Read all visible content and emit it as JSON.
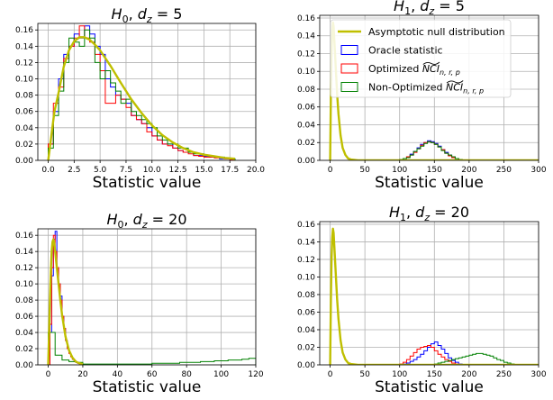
{
  "colors": {
    "null": "#bfbf00",
    "oracle": "#0000ff",
    "optimized": "#ff0000",
    "nonopt": "#008000",
    "grid": "#b0b0b0"
  },
  "chart_data": [
    {
      "type": "histogram",
      "title": {
        "hyp": "H",
        "sub": "0",
        "rest": ", ",
        "dz": "d",
        "dzsub": "z",
        "eq": " = 5"
      },
      "xlabel": "Statistic value",
      "xlim": [
        -1,
        20
      ],
      "ylim": [
        0,
        0.168
      ],
      "xticks": [
        "0.0",
        "2.5",
        "5.0",
        "7.5",
        "10.0",
        "12.5",
        "15.0",
        "17.5",
        "20.0"
      ],
      "xtick_values": [
        0,
        2.5,
        5,
        7.5,
        10,
        12.5,
        15,
        17.5,
        20
      ],
      "yticks": [
        "0.00",
        "0.02",
        "0.04",
        "0.06",
        "0.08",
        "0.10",
        "0.12",
        "0.14",
        "0.16"
      ],
      "ytick_values": [
        0,
        0.02,
        0.04,
        0.06,
        0.08,
        0.1,
        0.12,
        0.14,
        0.16
      ],
      "grid": true,
      "null_curve": {
        "x": [
          0,
          0.3,
          0.6,
          1,
          1.5,
          2,
          2.5,
          3,
          3.5,
          4,
          4.5,
          5,
          6,
          7,
          8,
          9,
          10,
          11,
          12,
          13,
          14,
          15,
          16,
          17,
          18
        ],
        "y": [
          0,
          0.03,
          0.06,
          0.083,
          0.115,
          0.135,
          0.146,
          0.151,
          0.151,
          0.148,
          0.142,
          0.135,
          0.116,
          0.095,
          0.075,
          0.058,
          0.043,
          0.031,
          0.022,
          0.015,
          0.01,
          0.007,
          0.005,
          0.003,
          0.002
        ]
      },
      "series": [
        {
          "name": "Oracle statistic",
          "key": "oracle",
          "x_start": 0,
          "bin_width": 0.5,
          "values": [
            0.02,
            0.06,
            0.1,
            0.13,
            0.14,
            0.155,
            0.15,
            0.165,
            0.155,
            0.14,
            0.13,
            0.1,
            0.09,
            0.08,
            0.075,
            0.07,
            0.055,
            0.05,
            0.045,
            0.04,
            0.03,
            0.025,
            0.02,
            0.02,
            0.015,
            0.012,
            0.01,
            0.01,
            0.006,
            0.006,
            0.005,
            0.004,
            0.004,
            0.002,
            0.002,
            0.001
          ]
        },
        {
          "name": "Optimized",
          "key": "optimized",
          "x_start": 0,
          "bin_width": 0.5,
          "values": [
            0.02,
            0.07,
            0.09,
            0.125,
            0.14,
            0.15,
            0.165,
            0.15,
            0.145,
            0.13,
            0.11,
            0.07,
            0.07,
            0.08,
            0.075,
            0.065,
            0.055,
            0.05,
            0.045,
            0.035,
            0.03,
            0.025,
            0.02,
            0.018,
            0.015,
            0.012,
            0.01,
            0.008,
            0.006,
            0.005,
            0.004,
            0.004,
            0.003,
            0.003,
            0.002,
            0.001
          ]
        },
        {
          "name": "Non-Optimized",
          "key": "nonopt",
          "x_start": 0,
          "bin_width": 0.5,
          "values": [
            0.015,
            0.055,
            0.085,
            0.12,
            0.15,
            0.145,
            0.14,
            0.16,
            0.15,
            0.12,
            0.1,
            0.11,
            0.095,
            0.085,
            0.07,
            0.075,
            0.06,
            0.055,
            0.05,
            0.045,
            0.04,
            0.03,
            0.025,
            0.02,
            0.02,
            0.015,
            0.015,
            0.01,
            0.008,
            0.008,
            0.006,
            0.005,
            0.004,
            0.004,
            0.003,
            0.002
          ]
        }
      ]
    },
    {
      "type": "histogram",
      "title": {
        "hyp": "H",
        "sub": "1",
        "rest": ", ",
        "dz": "d",
        "dzsub": "z",
        "eq": " = 5"
      },
      "xlabel": "Statistic value",
      "xlim": [
        -15,
        300
      ],
      "ylim": [
        0,
        0.163
      ],
      "xticks": [
        "0",
        "50",
        "100",
        "150",
        "200",
        "250",
        "300"
      ],
      "xtick_values": [
        0,
        50,
        100,
        150,
        200,
        250,
        300
      ],
      "yticks": [
        "0.00",
        "0.02",
        "0.04",
        "0.06",
        "0.08",
        "0.10",
        "0.12",
        "0.14",
        "0.16"
      ],
      "ytick_values": [
        0,
        0.02,
        0.04,
        0.06,
        0.08,
        0.1,
        0.12,
        0.14,
        0.16
      ],
      "grid": true,
      "null_curve": {
        "x": [
          0,
          1,
          2,
          3,
          4,
          5,
          6,
          8,
          10,
          12,
          15,
          18,
          22,
          26,
          30,
          40,
          60,
          80,
          300
        ],
        "y": [
          0,
          0.07,
          0.12,
          0.145,
          0.155,
          0.15,
          0.135,
          0.105,
          0.075,
          0.052,
          0.028,
          0.014,
          0.006,
          0.002,
          0.001,
          0,
          0,
          0,
          0
        ]
      },
      "series": [
        {
          "name": "Oracle statistic",
          "key": "oracle",
          "x_start": 100,
          "bin_width": 5,
          "values": [
            0.001,
            0.002,
            0.004,
            0.007,
            0.01,
            0.014,
            0.018,
            0.02,
            0.022,
            0.021,
            0.019,
            0.016,
            0.012,
            0.009,
            0.006,
            0.004,
            0.002,
            0.001,
            0.0005,
            0.0002
          ]
        },
        {
          "name": "Optimized",
          "key": "optimized",
          "x_start": 100,
          "bin_width": 5,
          "values": [
            0.001,
            0.002,
            0.004,
            0.006,
            0.009,
            0.013,
            0.017,
            0.02,
            0.021,
            0.02,
            0.018,
            0.015,
            0.012,
            0.008,
            0.005,
            0.003,
            0.002,
            0.001,
            0.0005,
            0.0002
          ]
        },
        {
          "name": "Non-Optimized",
          "key": "nonopt",
          "x_start": 100,
          "bin_width": 5,
          "values": [
            0.001,
            0.002,
            0.003,
            0.006,
            0.01,
            0.013,
            0.016,
            0.019,
            0.021,
            0.02,
            0.018,
            0.015,
            0.011,
            0.008,
            0.006,
            0.004,
            0.002,
            0.001,
            0.0005,
            0.0002
          ]
        }
      ],
      "legend": {
        "position": "top-right",
        "entries": [
          {
            "key": "null",
            "style": "line",
            "label": "Asymptotic null distribution"
          },
          {
            "key": "oracle",
            "style": "box",
            "label": "Oracle statistic"
          },
          {
            "key": "optimized",
            "style": "box",
            "label": "Optimized ",
            "math": "NCI",
            "sub": "n, r, p"
          },
          {
            "key": "nonopt",
            "style": "box",
            "label": "Non-Optimized ",
            "math": "NCI",
            "sub": "n, r, p"
          }
        ]
      }
    },
    {
      "type": "histogram",
      "title": {
        "hyp": "H",
        "sub": "0",
        "rest": ", ",
        "dz": "d",
        "dzsub": "z",
        "eq": " = 20"
      },
      "xlabel": "Statistic value",
      "xlim": [
        -6,
        120
      ],
      "ylim": [
        0,
        0.168
      ],
      "xticks": [
        "0",
        "20",
        "40",
        "60",
        "80",
        "100",
        "120"
      ],
      "xtick_values": [
        0,
        20,
        40,
        60,
        80,
        100,
        120
      ],
      "yticks": [
        "0.00",
        "0.02",
        "0.04",
        "0.06",
        "0.08",
        "0.10",
        "0.12",
        "0.14",
        "0.16"
      ],
      "ytick_values": [
        0,
        0.02,
        0.04,
        0.06,
        0.08,
        0.1,
        0.12,
        0.14,
        0.16
      ],
      "grid": true,
      "null_curve": {
        "x": [
          0,
          0.5,
          1,
          1.5,
          2,
          2.5,
          3,
          3.5,
          4,
          5,
          6,
          7,
          8,
          10,
          12,
          14,
          16,
          18,
          20
        ],
        "y": [
          0,
          0.04,
          0.08,
          0.115,
          0.14,
          0.152,
          0.155,
          0.15,
          0.14,
          0.12,
          0.1,
          0.08,
          0.062,
          0.035,
          0.018,
          0.009,
          0.004,
          0.002,
          0.001
        ]
      },
      "series": [
        {
          "name": "Oracle statistic",
          "key": "oracle",
          "x_start": 1,
          "bin_width": 1,
          "values": [
            0.04,
            0.11,
            0.155,
            0.165,
            0.12,
            0.1,
            0.085,
            0.06,
            0.045,
            0.03,
            0.02,
            0.015,
            0.01,
            0.007,
            0.005,
            0.003,
            0.002,
            0.001,
            0.001
          ]
        },
        {
          "name": "Optimized",
          "key": "optimized",
          "x_start": 1,
          "bin_width": 1,
          "values": [
            0.05,
            0.12,
            0.16,
            0.14,
            0.12,
            0.1,
            0.08,
            0.06,
            0.045,
            0.03,
            0.02,
            0.014,
            0.01,
            0.007,
            0.004,
            0.003,
            0.002,
            0.001,
            0.001
          ]
        },
        {
          "name": "Non-Optimized",
          "key": "nonopt",
          "x_start": 0,
          "bin_width": 4,
          "values": [
            0.04,
            0.012,
            0.006,
            0.004,
            0.003,
            0.001,
            0.001,
            0.001,
            0.001,
            0.001,
            0.001,
            0.001,
            0.001,
            0.001,
            0.001,
            0.002,
            0.002,
            0.002,
            0.002,
            0.003,
            0.003,
            0.003,
            0.004,
            0.004,
            0.005,
            0.005,
            0.006,
            0.006,
            0.007,
            0.008
          ]
        }
      ]
    },
    {
      "type": "histogram",
      "title": {
        "hyp": "H",
        "sub": "1",
        "rest": ", ",
        "dz": "d",
        "dzsub": "z",
        "eq": " = 20"
      },
      "xlabel": "Statistic value",
      "xlim": [
        -15,
        300
      ],
      "ylim": [
        0,
        0.163
      ],
      "xticks": [
        "0",
        "50",
        "100",
        "150",
        "200",
        "250",
        "300"
      ],
      "xtick_values": [
        0,
        50,
        100,
        150,
        200,
        250,
        300
      ],
      "yticks": [
        "0.00",
        "0.02",
        "0.04",
        "0.06",
        "0.08",
        "0.10",
        "0.12",
        "0.14",
        "0.16"
      ],
      "ytick_values": [
        0,
        0.02,
        0.04,
        0.06,
        0.08,
        0.1,
        0.12,
        0.14,
        0.16
      ],
      "grid": true,
      "null_curve": {
        "x": [
          0,
          1,
          2,
          3,
          4,
          5,
          6,
          8,
          10,
          12,
          15,
          18,
          22,
          26,
          30,
          40,
          60,
          80,
          300
        ],
        "y": [
          0,
          0.07,
          0.12,
          0.145,
          0.155,
          0.15,
          0.135,
          0.105,
          0.075,
          0.052,
          0.028,
          0.014,
          0.006,
          0.002,
          0.001,
          0,
          0,
          0,
          0
        ]
      },
      "series": [
        {
          "name": "Oracle statistic",
          "key": "oracle",
          "x_start": 105,
          "bin_width": 5,
          "values": [
            0.001,
            0.002,
            0.004,
            0.006,
            0.009,
            0.012,
            0.016,
            0.02,
            0.024,
            0.026,
            0.022,
            0.018,
            0.013,
            0.008,
            0.005,
            0.003,
            0.001,
            0.0005
          ]
        },
        {
          "name": "Optimized",
          "key": "optimized",
          "x_start": 100,
          "bin_width": 5,
          "values": [
            0.001,
            0.003,
            0.006,
            0.01,
            0.014,
            0.018,
            0.02,
            0.021,
            0.022,
            0.02,
            0.016,
            0.012,
            0.009,
            0.006,
            0.004,
            0.002,
            0.001,
            0.0005
          ]
        },
        {
          "name": "Non-Optimized",
          "key": "nonopt",
          "x_start": 150,
          "bin_width": 5,
          "values": [
            0.001,
            0.002,
            0.003,
            0.004,
            0.005,
            0.006,
            0.007,
            0.008,
            0.009,
            0.01,
            0.011,
            0.012,
            0.013,
            0.013,
            0.012,
            0.011,
            0.01,
            0.008,
            0.006,
            0.005,
            0.003,
            0.002,
            0.001,
            0.0005
          ]
        }
      ]
    }
  ]
}
